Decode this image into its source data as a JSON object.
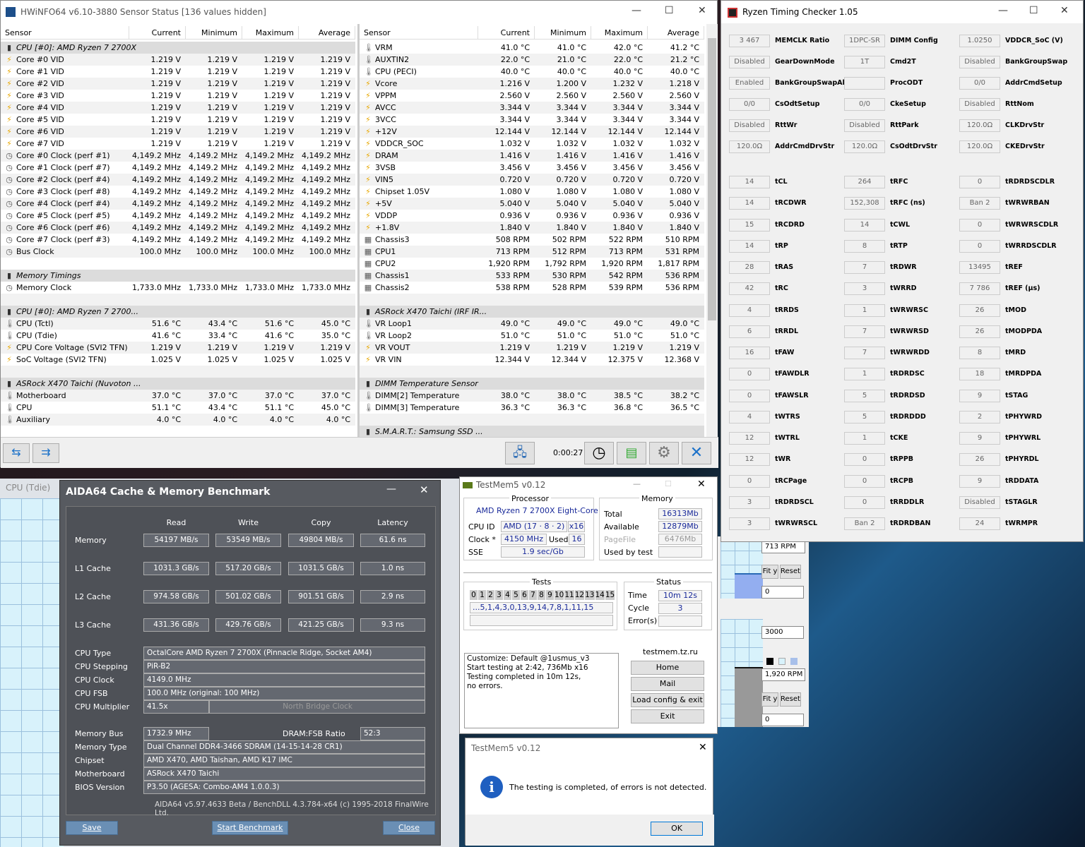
{
  "hwinfo": {
    "title": "HWiNFO64 v6.10-3880 Sensor Status [136 values hidden]",
    "columns": [
      "Sensor",
      "Current",
      "Minimum",
      "Maximum",
      "Average"
    ],
    "left": [
      [
        "g",
        "CPU [#0]: AMD Ryzen 7 2700X",
        "",
        "",
        "",
        "",
        "chip"
      ],
      [
        "r",
        "Core #0 VID",
        "1.219 V",
        "1.219 V",
        "1.219 V",
        "1.219 V",
        "bolt"
      ],
      [
        "r",
        "Core #1 VID",
        "1.219 V",
        "1.219 V",
        "1.219 V",
        "1.219 V",
        "bolt"
      ],
      [
        "r",
        "Core #2 VID",
        "1.219 V",
        "1.219 V",
        "1.219 V",
        "1.219 V",
        "bolt"
      ],
      [
        "r",
        "Core #3 VID",
        "1.219 V",
        "1.219 V",
        "1.219 V",
        "1.219 V",
        "bolt"
      ],
      [
        "r",
        "Core #4 VID",
        "1.219 V",
        "1.219 V",
        "1.219 V",
        "1.219 V",
        "bolt"
      ],
      [
        "r",
        "Core #5 VID",
        "1.219 V",
        "1.219 V",
        "1.219 V",
        "1.219 V",
        "bolt"
      ],
      [
        "r",
        "Core #6 VID",
        "1.219 V",
        "1.219 V",
        "1.219 V",
        "1.219 V",
        "bolt"
      ],
      [
        "r",
        "Core #7 VID",
        "1.219 V",
        "1.219 V",
        "1.219 V",
        "1.219 V",
        "bolt"
      ],
      [
        "r",
        "Core #0 Clock (perf #1)",
        "4,149.2 MHz",
        "4,149.2 MHz",
        "4,149.2 MHz",
        "4,149.2 MHz",
        "clock"
      ],
      [
        "r",
        "Core #1 Clock (perf #7)",
        "4,149.2 MHz",
        "4,149.2 MHz",
        "4,149.2 MHz",
        "4,149.2 MHz",
        "clock"
      ],
      [
        "r",
        "Core #2 Clock (perf #4)",
        "4,149.2 MHz",
        "4,149.2 MHz",
        "4,149.2 MHz",
        "4,149.2 MHz",
        "clock"
      ],
      [
        "r",
        "Core #3 Clock (perf #8)",
        "4,149.2 MHz",
        "4,149.2 MHz",
        "4,149.2 MHz",
        "4,149.2 MHz",
        "clock"
      ],
      [
        "r",
        "Core #4 Clock (perf #4)",
        "4,149.2 MHz",
        "4,149.2 MHz",
        "4,149.2 MHz",
        "4,149.2 MHz",
        "clock"
      ],
      [
        "r",
        "Core #5 Clock (perf #5)",
        "4,149.2 MHz",
        "4,149.2 MHz",
        "4,149.2 MHz",
        "4,149.2 MHz",
        "clock"
      ],
      [
        "r",
        "Core #6 Clock (perf #6)",
        "4,149.2 MHz",
        "4,149.2 MHz",
        "4,149.2 MHz",
        "4,149.2 MHz",
        "clock"
      ],
      [
        "r",
        "Core #7 Clock (perf #3)",
        "4,149.2 MHz",
        "4,149.2 MHz",
        "4,149.2 MHz",
        "4,149.2 MHz",
        "clock"
      ],
      [
        "r",
        "Bus Clock",
        "100.0 MHz",
        "100.0 MHz",
        "100.0 MHz",
        "100.0 MHz",
        "clock"
      ],
      [
        "e",
        "",
        "",
        "",
        "",
        "",
        ""
      ],
      [
        "g",
        "Memory Timings",
        "",
        "",
        "",
        "",
        "chip"
      ],
      [
        "r",
        "Memory Clock",
        "1,733.0 MHz",
        "1,733.0 MHz",
        "1,733.0 MHz",
        "1,733.0 MHz",
        "clock"
      ],
      [
        "e",
        "",
        "",
        "",
        "",
        "",
        ""
      ],
      [
        "g",
        "CPU [#0]: AMD Ryzen 7 2700...",
        "",
        "",
        "",
        "",
        "chip"
      ],
      [
        "r",
        "CPU (Tctl)",
        "51.6 °C",
        "43.4 °C",
        "51.6 °C",
        "45.0 °C",
        "thermo"
      ],
      [
        "r",
        "CPU (Tdie)",
        "41.6 °C",
        "33.4 °C",
        "41.6 °C",
        "35.0 °C",
        "thermo"
      ],
      [
        "r",
        "CPU Core Voltage (SVI2 TFN)",
        "1.219 V",
        "1.219 V",
        "1.219 V",
        "1.219 V",
        "bolt"
      ],
      [
        "r",
        "SoC Voltage (SVI2 TFN)",
        "1.025 V",
        "1.025 V",
        "1.025 V",
        "1.025 V",
        "bolt"
      ],
      [
        "e",
        "",
        "",
        "",
        "",
        "",
        ""
      ],
      [
        "g",
        "ASRock X470 Taichi (Nuvoton ...",
        "",
        "",
        "",
        "",
        "chip"
      ],
      [
        "r",
        "Motherboard",
        "37.0 °C",
        "37.0 °C",
        "37.0 °C",
        "37.0 °C",
        "thermo"
      ],
      [
        "r",
        "CPU",
        "51.1 °C",
        "43.4 °C",
        "51.1 °C",
        "45.0 °C",
        "thermo"
      ],
      [
        "r",
        "Auxiliary",
        "4.0 °C",
        "4.0 °C",
        "4.0 °C",
        "4.0 °C",
        "thermo"
      ]
    ],
    "right": [
      [
        "r",
        "VRM",
        "41.0 °C",
        "41.0 °C",
        "42.0 °C",
        "41.2 °C",
        "thermo"
      ],
      [
        "r",
        "AUXTIN2",
        "22.0 °C",
        "21.0 °C",
        "22.0 °C",
        "21.2 °C",
        "thermo"
      ],
      [
        "r",
        "CPU (PECI)",
        "40.0 °C",
        "40.0 °C",
        "40.0 °C",
        "40.0 °C",
        "thermo"
      ],
      [
        "r",
        "Vcore",
        "1.216 V",
        "1.200 V",
        "1.232 V",
        "1.218 V",
        "bolt"
      ],
      [
        "r",
        "VPPM",
        "2.560 V",
        "2.560 V",
        "2.560 V",
        "2.560 V",
        "bolt"
      ],
      [
        "r",
        "AVCC",
        "3.344 V",
        "3.344 V",
        "3.344 V",
        "3.344 V",
        "bolt"
      ],
      [
        "r",
        "3VCC",
        "3.344 V",
        "3.344 V",
        "3.344 V",
        "3.344 V",
        "bolt"
      ],
      [
        "r",
        "+12V",
        "12.144 V",
        "12.144 V",
        "12.144 V",
        "12.144 V",
        "bolt"
      ],
      [
        "r",
        "VDDCR_SOC",
        "1.032 V",
        "1.032 V",
        "1.032 V",
        "1.032 V",
        "bolt"
      ],
      [
        "r",
        "DRAM",
        "1.416 V",
        "1.416 V",
        "1.416 V",
        "1.416 V",
        "bolt"
      ],
      [
        "r",
        "3VSB",
        "3.456 V",
        "3.456 V",
        "3.456 V",
        "3.456 V",
        "bolt"
      ],
      [
        "r",
        "VIN5",
        "0.720 V",
        "0.720 V",
        "0.720 V",
        "0.720 V",
        "bolt"
      ],
      [
        "r",
        "Chipset 1.05V",
        "1.080 V",
        "1.080 V",
        "1.080 V",
        "1.080 V",
        "bolt"
      ],
      [
        "r",
        "+5V",
        "5.040 V",
        "5.040 V",
        "5.040 V",
        "5.040 V",
        "bolt"
      ],
      [
        "r",
        "VDDP",
        "0.936 V",
        "0.936 V",
        "0.936 V",
        "0.936 V",
        "bolt"
      ],
      [
        "r",
        "+1.8V",
        "1.840 V",
        "1.840 V",
        "1.840 V",
        "1.840 V",
        "bolt"
      ],
      [
        "r",
        "Chassis3",
        "508 RPM",
        "502 RPM",
        "522 RPM",
        "510 RPM",
        "fan"
      ],
      [
        "r",
        "CPU1",
        "713 RPM",
        "512 RPM",
        "713 RPM",
        "531 RPM",
        "fan"
      ],
      [
        "r",
        "CPU2",
        "1,920 RPM",
        "1,792 RPM",
        "1,920 RPM",
        "1,817 RPM",
        "fan"
      ],
      [
        "r",
        "Chassis1",
        "533 RPM",
        "530 RPM",
        "542 RPM",
        "536 RPM",
        "fan"
      ],
      [
        "r",
        "Chassis2",
        "538 RPM",
        "528 RPM",
        "539 RPM",
        "536 RPM",
        "fan"
      ],
      [
        "e",
        "",
        "",
        "",
        "",
        "",
        ""
      ],
      [
        "g",
        "ASRock X470 Taichi (IRF IR...",
        "",
        "",
        "",
        "",
        "chip"
      ],
      [
        "r",
        "VR Loop1",
        "49.0 °C",
        "49.0 °C",
        "49.0 °C",
        "49.0 °C",
        "thermo"
      ],
      [
        "r",
        "VR Loop2",
        "51.0 °C",
        "51.0 °C",
        "51.0 °C",
        "51.0 °C",
        "thermo"
      ],
      [
        "r",
        "VR VOUT",
        "1.219 V",
        "1.219 V",
        "1.219 V",
        "1.219 V",
        "bolt"
      ],
      [
        "r",
        "VR VIN",
        "12.344 V",
        "12.344 V",
        "12.375 V",
        "12.368 V",
        "bolt"
      ],
      [
        "e",
        "",
        "",
        "",
        "",
        "",
        ""
      ],
      [
        "g",
        "DIMM Temperature Sensor",
        "",
        "",
        "",
        "",
        "chip"
      ],
      [
        "r",
        "DIMM[2] Temperature",
        "38.0 °C",
        "38.0 °C",
        "38.5 °C",
        "38.2 °C",
        "thermo"
      ],
      [
        "r",
        "DIMM[3] Temperature",
        "36.3 °C",
        "36.3 °C",
        "36.8 °C",
        "36.5 °C",
        "thermo"
      ],
      [
        "e",
        "",
        "",
        "",
        "",
        "",
        ""
      ],
      [
        "g",
        "S.M.A.R.T.: Samsung SSD ...",
        "",
        "",
        "",
        "",
        "chip"
      ]
    ],
    "timer": "0:00:27"
  },
  "rtc": {
    "title": "Ryzen Timing Checker 1.05",
    "top": [
      [
        [
          "3 467",
          "MEMCLK Ratio"
        ],
        [
          "Disabled",
          "GearDownMode"
        ],
        [
          "Enabled",
          "BankGroupSwapAlt"
        ],
        [
          "0/0",
          "CsOdtSetup"
        ],
        [
          "Disabled",
          "RttWr"
        ],
        [
          "120.0Ω",
          "AddrCmdDrvStr"
        ]
      ],
      [
        [
          "1DPC-SR",
          "DIMM Config"
        ],
        [
          "1T",
          "Cmd2T"
        ],
        [
          "",
          "ProcODT"
        ],
        [
          "0/0",
          "CkeSetup"
        ],
        [
          "Disabled",
          "RttPark"
        ],
        [
          "120.0Ω",
          "CsOdtDrvStr"
        ]
      ],
      [
        [
          "1.0250",
          "VDDCR_SoC (V)"
        ],
        [
          "Disabled",
          "BankGroupSwap"
        ],
        [
          "0/0",
          "AddrCmdSetup"
        ],
        [
          "Disabled",
          "RttNom"
        ],
        [
          "120.0Ω",
          "CLKDrvStr"
        ],
        [
          "120.0Ω",
          "CKEDrvStr"
        ]
      ]
    ],
    "timings": [
      [
        [
          "14",
          "tCL"
        ],
        [
          "14",
          "tRCDWR"
        ],
        [
          "15",
          "tRCDRD"
        ],
        [
          "14",
          "tRP"
        ],
        [
          "28",
          "tRAS"
        ],
        [
          "42",
          "tRC"
        ],
        [
          "4",
          "tRRDS"
        ],
        [
          "6",
          "tRRDL"
        ],
        [
          "16",
          "tFAW"
        ],
        [
          "0",
          "tFAWDLR"
        ],
        [
          "0",
          "tFAWSLR"
        ],
        [
          "4",
          "tWTRS"
        ],
        [
          "12",
          "tWTRL"
        ],
        [
          "12",
          "tWR"
        ],
        [
          "0",
          "tRCPage"
        ],
        [
          "3",
          "tRDRDSCL"
        ],
        [
          "3",
          "tWRWRSCL"
        ]
      ],
      [
        [
          "264",
          "tRFC"
        ],
        [
          "152,308",
          "tRFC (ns)"
        ],
        [
          "14",
          "tCWL"
        ],
        [
          "8",
          "tRTP"
        ],
        [
          "7",
          "tRDWR"
        ],
        [
          "3",
          "tWRRD"
        ],
        [
          "1",
          "tWRWRSC"
        ],
        [
          "7",
          "tWRWRSD"
        ],
        [
          "7",
          "tWRWRDD"
        ],
        [
          "1",
          "tRDRDSC"
        ],
        [
          "5",
          "tRDRDSD"
        ],
        [
          "5",
          "tRDRDDD"
        ],
        [
          "1",
          "tCKE"
        ],
        [
          "0",
          "tRPPB"
        ],
        [
          "0",
          "tRCPB"
        ],
        [
          "0",
          "tRRDDLR"
        ],
        [
          "Ban 2",
          "tRDRDBAN"
        ]
      ],
      [
        [
          "0",
          "tRDRDSCDLR"
        ],
        [
          "Ban 2",
          "tWRWRBAN"
        ],
        [
          "0",
          "tWRWRSCDLR"
        ],
        [
          "0",
          "tWRRDSCDLR"
        ],
        [
          "13495",
          "tREF"
        ],
        [
          "7 786",
          "tREF (μs)"
        ],
        [
          "26",
          "tMOD"
        ],
        [
          "26",
          "tMODPDA"
        ],
        [
          "8",
          "tMRD"
        ],
        [
          "18",
          "tMRDPDA"
        ],
        [
          "9",
          "tSTAG"
        ],
        [
          "2",
          "tPHYWRD"
        ],
        [
          "9",
          "tPHYWRL"
        ],
        [
          "26",
          "tPHYRDL"
        ],
        [
          "9",
          "tRDDATA"
        ],
        [
          "Disabled",
          "tSTAGLR"
        ],
        [
          "24",
          "tWRMPR"
        ]
      ]
    ]
  },
  "graphs": {
    "title": "CPU (Tdie)",
    "g1_value": "713 RPM",
    "g1_min": "0",
    "g2_max": "3000",
    "g2_value": "1,920 RPM",
    "g2_min": "0",
    "fit": "Fit y",
    "reset": "Reset"
  },
  "aida": {
    "title": "AIDA64 Cache & Memory Benchmark",
    "columns": [
      "Read",
      "Write",
      "Copy",
      "Latency"
    ],
    "bench": [
      [
        "Memory",
        "54197 MB/s",
        "53549 MB/s",
        "49804 MB/s",
        "61.6 ns"
      ],
      [
        "L1 Cache",
        "1031.3 GB/s",
        "517.20 GB/s",
        "1031.5 GB/s",
        "1.0 ns"
      ],
      [
        "L2 Cache",
        "974.58 GB/s",
        "501.02 GB/s",
        "901.51 GB/s",
        "2.9 ns"
      ],
      [
        "L3 Cache",
        "431.36 GB/s",
        "429.76 GB/s",
        "421.25 GB/s",
        "9.3 ns"
      ]
    ],
    "info1": [
      [
        "CPU Type",
        "OctalCore AMD Ryzen 7 2700X  (Pinnacle Ridge, Socket AM4)"
      ],
      [
        "CPU Stepping",
        "PiR-B2"
      ],
      [
        "CPU Clock",
        "4149.0 MHz"
      ],
      [
        "CPU FSB",
        "100.0 MHz  (original: 100 MHz)"
      ]
    ],
    "multiplier_label": "CPU Multiplier",
    "multiplier": "41.5x",
    "nb_clock": "North Bridge Clock",
    "membus_label": "Memory Bus",
    "membus": "1732.9 MHz",
    "ratio_label": "DRAM:FSB Ratio",
    "ratio": "52:3",
    "info2": [
      [
        "Memory Type",
        "Dual Channel DDR4-3466 SDRAM  (14-15-14-28 CR1)"
      ],
      [
        "Chipset",
        "AMD X470, AMD Taishan, AMD K17 IMC"
      ],
      [
        "Motherboard",
        "ASRock X470 Taichi"
      ],
      [
        "BIOS Version",
        "P3.50  (AGESA: Combo-AM4 1.0.0.3)"
      ]
    ],
    "footer": "AIDA64 v5.97.4633 Beta / BenchDLL 4.3.784-x64  (c) 1995-2018 FinalWire Ltd.",
    "save": "Save",
    "start": "Start Benchmark",
    "close": "Close"
  },
  "testmem": {
    "title": "TestMem5 v0.12",
    "processor_label": "Processor",
    "cpu_name": "AMD Ryzen 7 2700X Eight-Core",
    "cpuid_label": "CPU ID",
    "cpuid": "AMD  (17 · 8 · 2)",
    "threads": "x16",
    "clock_label": "Clock *",
    "clock": "4150 MHz",
    "used_label": "Used",
    "used": "16",
    "sse_label": "SSE",
    "sse": "1.9 sec/Gb",
    "memory_label": "Memory",
    "total_label": "Total",
    "total": "16313Mb",
    "avail_label": "Available",
    "avail": "12879Mb",
    "pagefile_label": "PageFile",
    "pagefile": "6476Mb",
    "usedby_label": "Used by test",
    "tests_label": "Tests",
    "tests": [
      "0",
      "1",
      "2",
      "3",
      "4",
      "5",
      "6",
      "7",
      "8",
      "9",
      "10",
      "11",
      "12",
      "13",
      "14",
      "15"
    ],
    "sequence": "...5,1,4,3,0,13,9,14,7,8,1,11,15",
    "status_label": "Status",
    "time_label": "Time",
    "time": "10m 12s",
    "cycle_label": "Cycle",
    "cycle": "3",
    "errors_label": "Error(s)",
    "log": [
      "Customize: Default @1usmus_v3",
      "Start testing at 2:42, 736Mb x16",
      "Testing completed in 10m 12s,",
      "no errors."
    ],
    "site": "testmem.tz.ru",
    "home": "Home",
    "mail": "Mail",
    "load": "Load config & exit",
    "exit": "Exit"
  },
  "dialog": {
    "title": "TestMem5 v0.12",
    "message": "The testing is completed, of errors is not detected.",
    "ok": "OK"
  }
}
